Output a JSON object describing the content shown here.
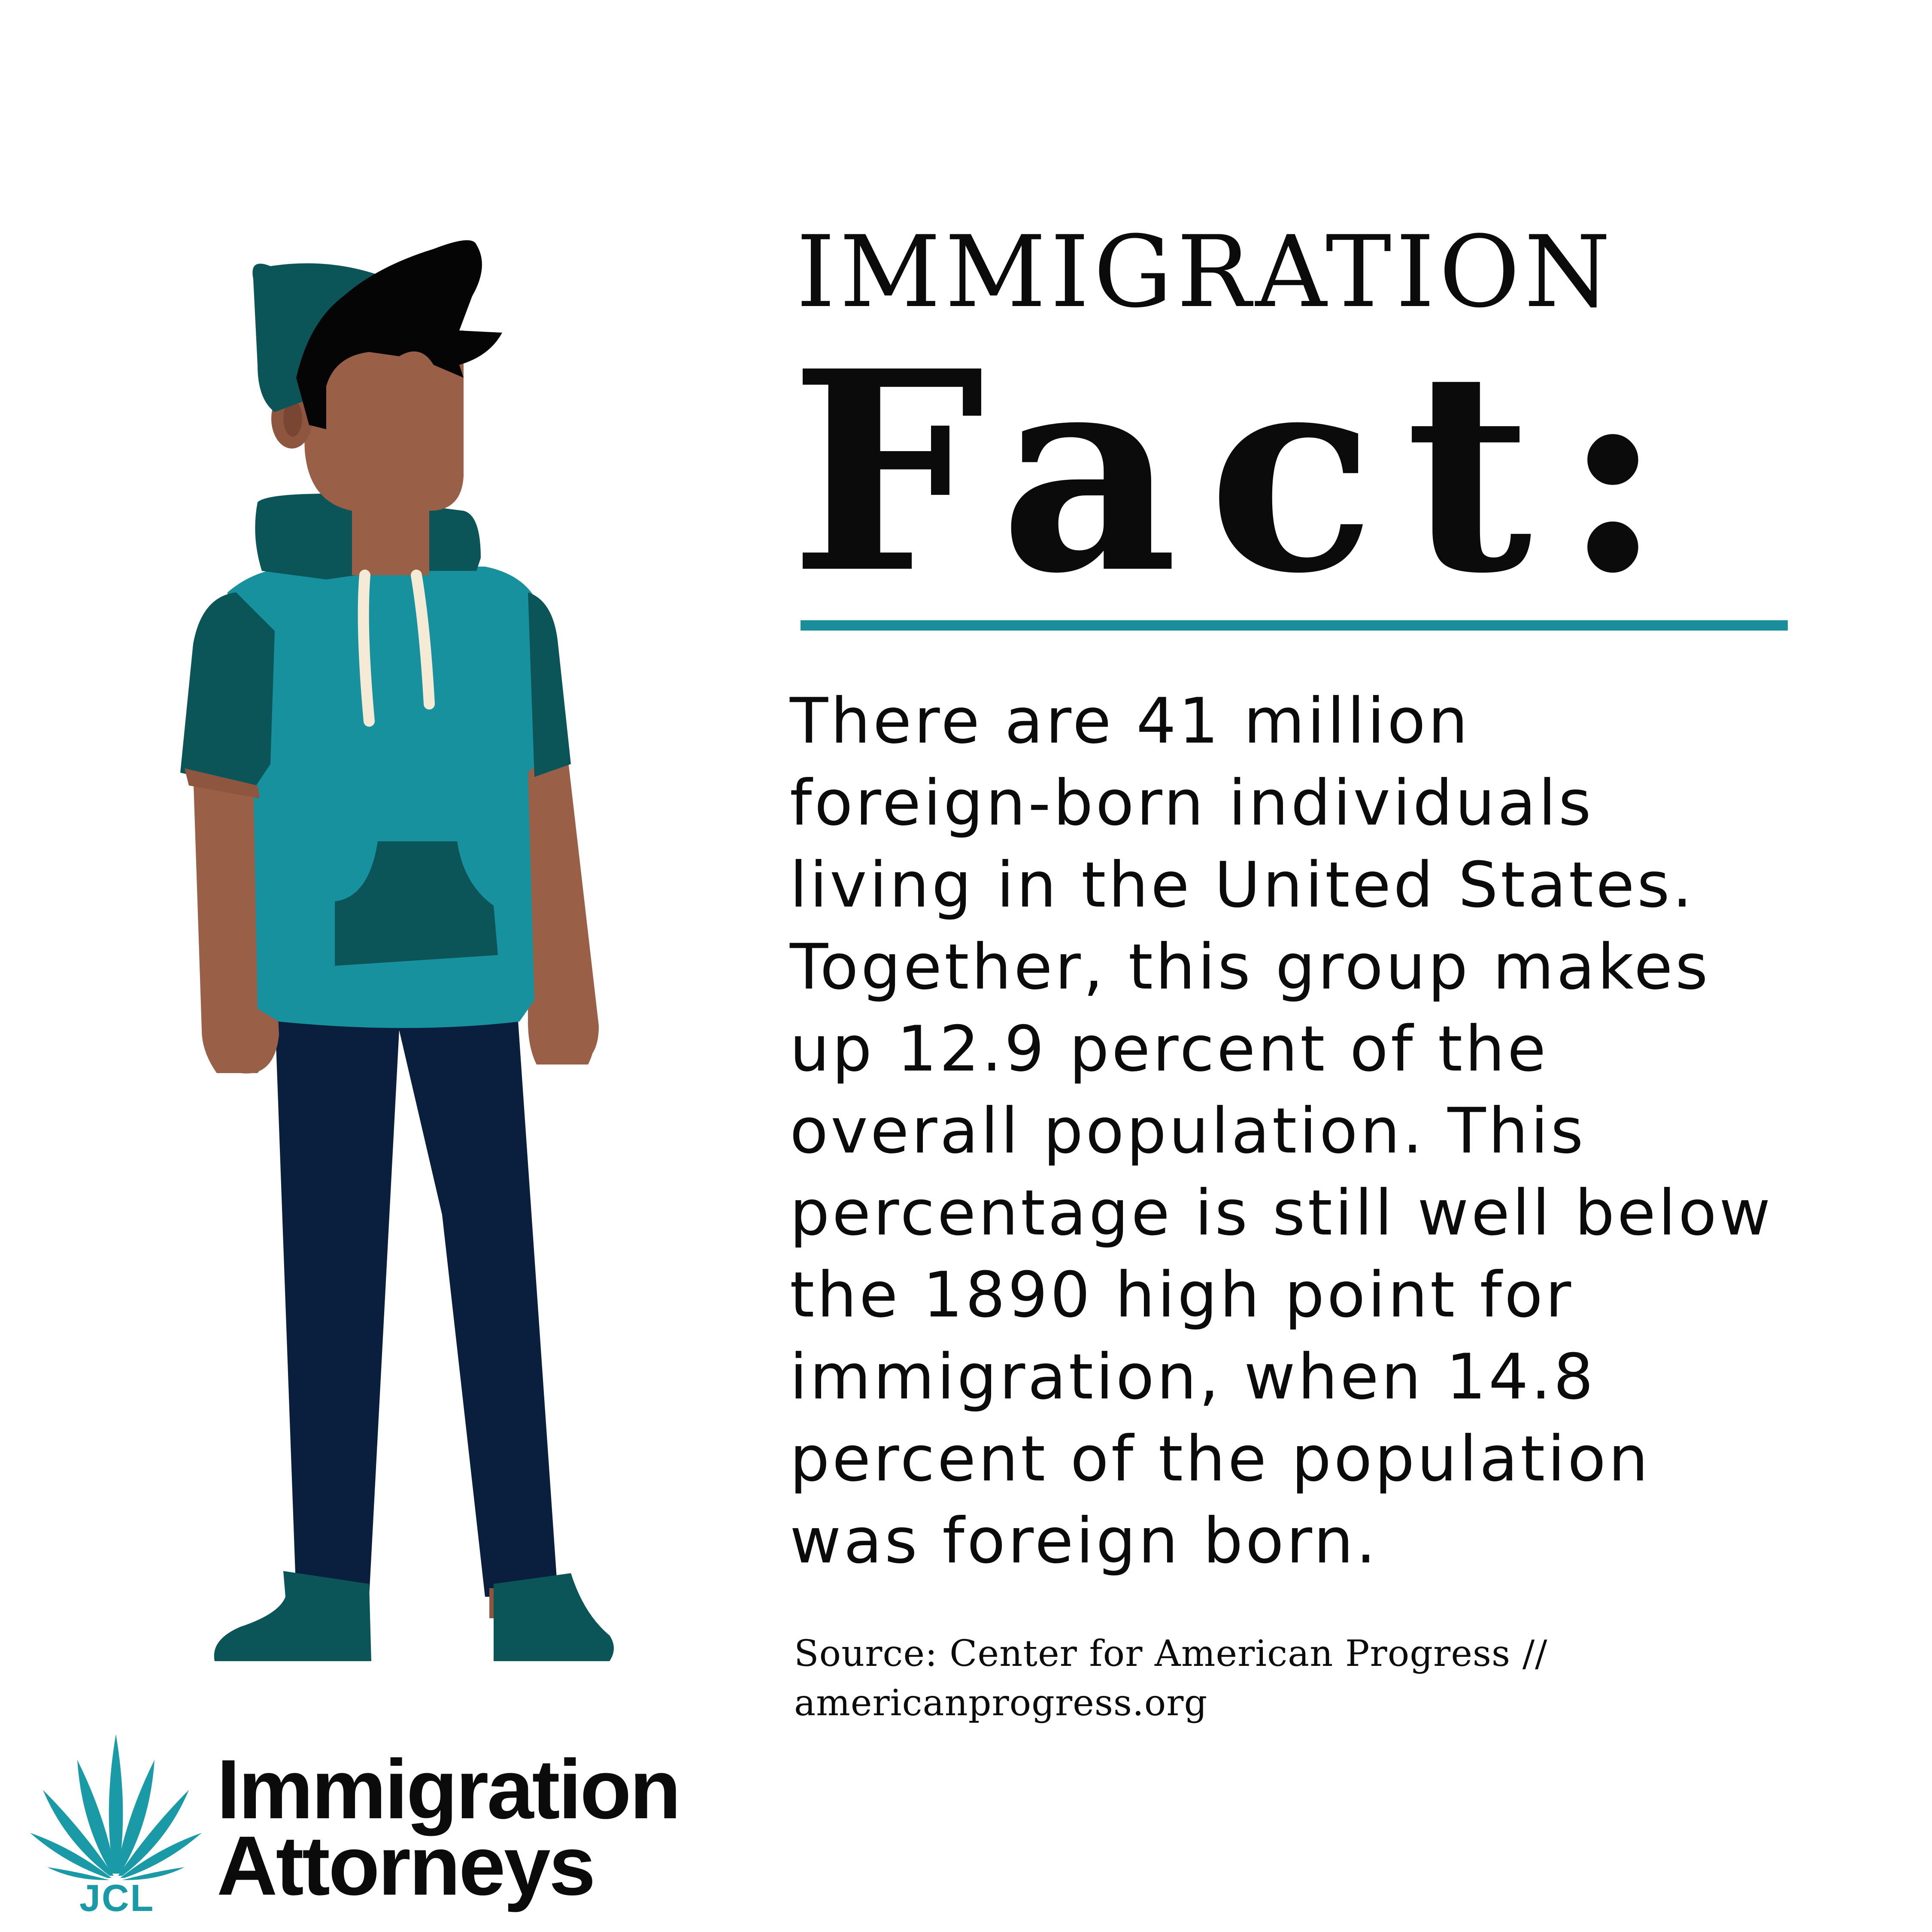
{
  "heading": {
    "line1": "IMMIGRATION",
    "line2": "Fact:"
  },
  "body_lines": [
    "There are 41 million",
    "foreign-born individuals",
    "living in the United States.",
    "Together, this group makes",
    "up 12.9 percent of the",
    "overall population. This",
    "percentage is still well below",
    "the 1890 high point for",
    "immigration, when 14.8",
    "percent of the population",
    "was foreign born."
  ],
  "source": {
    "line1": "Source: Center for American Progress //",
    "line2": "americanprogress.org"
  },
  "logo": {
    "initials": "JCL",
    "name_line1": "Immigration",
    "name_line2": "Attorneys"
  },
  "colors": {
    "accent_teal": "#1a8f9b",
    "dark_teal": "#0b5559",
    "skin": "#9a5f47",
    "pants": "#0a1f3d",
    "text": "#0b0b0b"
  }
}
